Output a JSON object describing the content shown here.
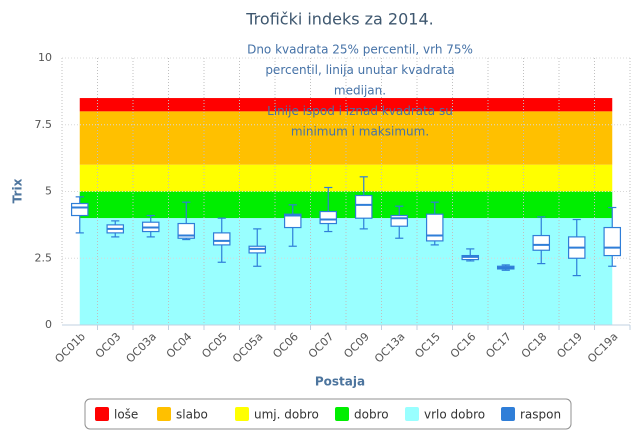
{
  "chart_data": {
    "type": "box",
    "title": "Trofički indeks za 2014.",
    "annotation": [
      "Dno kvadrata 25% percentil, vrh 75%",
      "percentil, linija unutar kvadrata",
      "medijan.",
      "Linije ispod i iznad kvadrata su",
      "minimum i maksimum."
    ],
    "xlabel": "Postaja",
    "ylabel": "Trix",
    "categories": [
      "OC01b",
      "OC03",
      "OC03a",
      "OC04",
      "OC05",
      "OC05a",
      "OC06",
      "OC07",
      "OC09",
      "OC13a",
      "OC15",
      "OC16",
      "OC17",
      "OC18",
      "OC19",
      "OC19a"
    ],
    "bands": [
      {
        "name": "loše",
        "color": "#ff0000",
        "from": 8,
        "to": 8.5
      },
      {
        "name": "slabo",
        "color": "#ffc000",
        "from": 6,
        "to": 8
      },
      {
        "name": "umj. dobro",
        "color": "#ffff00",
        "from": 5,
        "to": 6
      },
      {
        "name": "dobro",
        "color": "#00ee00",
        "from": 4,
        "to": 5
      },
      {
        "name": "vrlo dobro",
        "color": "#99ffff",
        "from": 0,
        "to": 4
      }
    ],
    "series": [
      {
        "name": "raspon",
        "color": "#2f7ed8",
        "min": [
          3.45,
          3.3,
          3.3,
          3.2,
          2.35,
          2.2,
          2.95,
          3.5,
          3.6,
          3.25,
          3.0,
          2.4,
          2.05,
          2.3,
          1.85,
          2.2
        ],
        "q1": [
          4.1,
          3.45,
          3.5,
          3.25,
          3.0,
          2.7,
          3.65,
          3.8,
          4.0,
          3.7,
          3.15,
          2.45,
          2.1,
          2.8,
          2.5,
          2.6
        ],
        "median": [
          4.4,
          3.6,
          3.65,
          3.35,
          3.15,
          2.85,
          4.1,
          3.95,
          4.5,
          4.0,
          3.35,
          2.55,
          2.15,
          3.0,
          2.9,
          2.9
        ],
        "q3": [
          4.55,
          3.75,
          3.85,
          3.8,
          3.45,
          2.95,
          4.15,
          4.25,
          4.85,
          4.1,
          4.15,
          2.6,
          2.2,
          3.35,
          3.3,
          3.65
        ],
        "max": [
          4.8,
          3.9,
          4.1,
          4.6,
          4.0,
          3.6,
          4.5,
          5.15,
          5.55,
          4.45,
          4.6,
          2.85,
          2.25,
          4.05,
          3.95,
          4.4
        ]
      }
    ],
    "ylim": [
      0,
      10
    ],
    "yticks": [
      0,
      2.5,
      5,
      7.5,
      10
    ],
    "grid": true
  }
}
